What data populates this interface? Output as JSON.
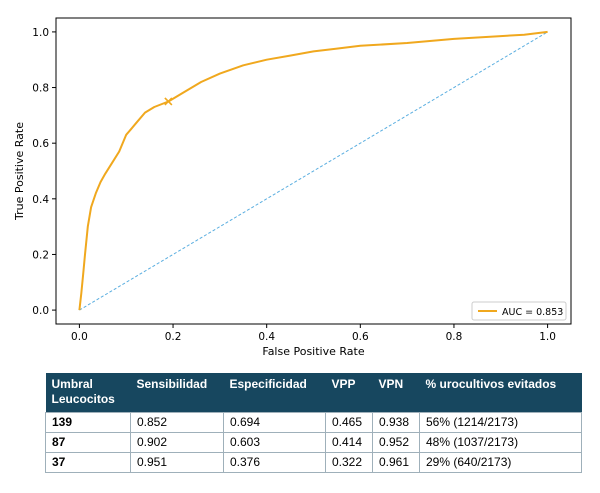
{
  "chart_data": {
    "type": "line",
    "title": "",
    "xlabel": "False Positive Rate",
    "ylabel": "True Positive Rate",
    "xlim": [
      -0.05,
      1.05
    ],
    "ylim": [
      -0.05,
      1.05
    ],
    "xticks": [
      "0.0",
      "0.2",
      "0.4",
      "0.6",
      "0.8",
      "1.0"
    ],
    "yticks": [
      "0.0",
      "0.2",
      "0.4",
      "0.6",
      "0.8",
      "1.0"
    ],
    "grid": false,
    "legend_position": "lower-right",
    "series": [
      {
        "name": "AUC = 0.853",
        "color": "#f0a81e",
        "style": "solid",
        "x": [
          0.0,
          0.004,
          0.008,
          0.012,
          0.018,
          0.025,
          0.035,
          0.045,
          0.055,
          0.07,
          0.085,
          0.1,
          0.11,
          0.12,
          0.14,
          0.16,
          0.19,
          0.22,
          0.26,
          0.3,
          0.35,
          0.4,
          0.45,
          0.5,
          0.55,
          0.6,
          0.7,
          0.8,
          0.9,
          0.95,
          1.0
        ],
        "y": [
          0.0,
          0.06,
          0.13,
          0.2,
          0.3,
          0.37,
          0.42,
          0.46,
          0.49,
          0.53,
          0.57,
          0.63,
          0.65,
          0.67,
          0.71,
          0.73,
          0.75,
          0.78,
          0.82,
          0.85,
          0.88,
          0.9,
          0.915,
          0.93,
          0.94,
          0.95,
          0.96,
          0.975,
          0.985,
          0.99,
          1.0
        ]
      },
      {
        "name": "",
        "color": "#5aaee0",
        "style": "dashed",
        "x": [
          0,
          1
        ],
        "y": [
          0,
          1
        ]
      }
    ],
    "marker": {
      "x": 0.19,
      "y": 0.75,
      "symbol": "x",
      "color": "#f0a81e"
    }
  },
  "table": {
    "headers": [
      [
        "Umbral",
        "Leucocitos"
      ],
      [
        "Sensibilidad"
      ],
      [
        "Especificidad"
      ],
      [
        "VPP"
      ],
      [
        "VPN"
      ],
      [
        "% urocultivos evitados"
      ]
    ],
    "rows": [
      [
        "139",
        "0.852",
        "0.694",
        "0.465",
        "0.938",
        "56% (1214/2173)"
      ],
      [
        "87",
        "0.902",
        "0.603",
        "0.414",
        "0.952",
        "48% (1037/2173)"
      ],
      [
        "37",
        "0.951",
        "0.376",
        "0.322",
        "0.961",
        "29% (640/2173)"
      ]
    ]
  }
}
